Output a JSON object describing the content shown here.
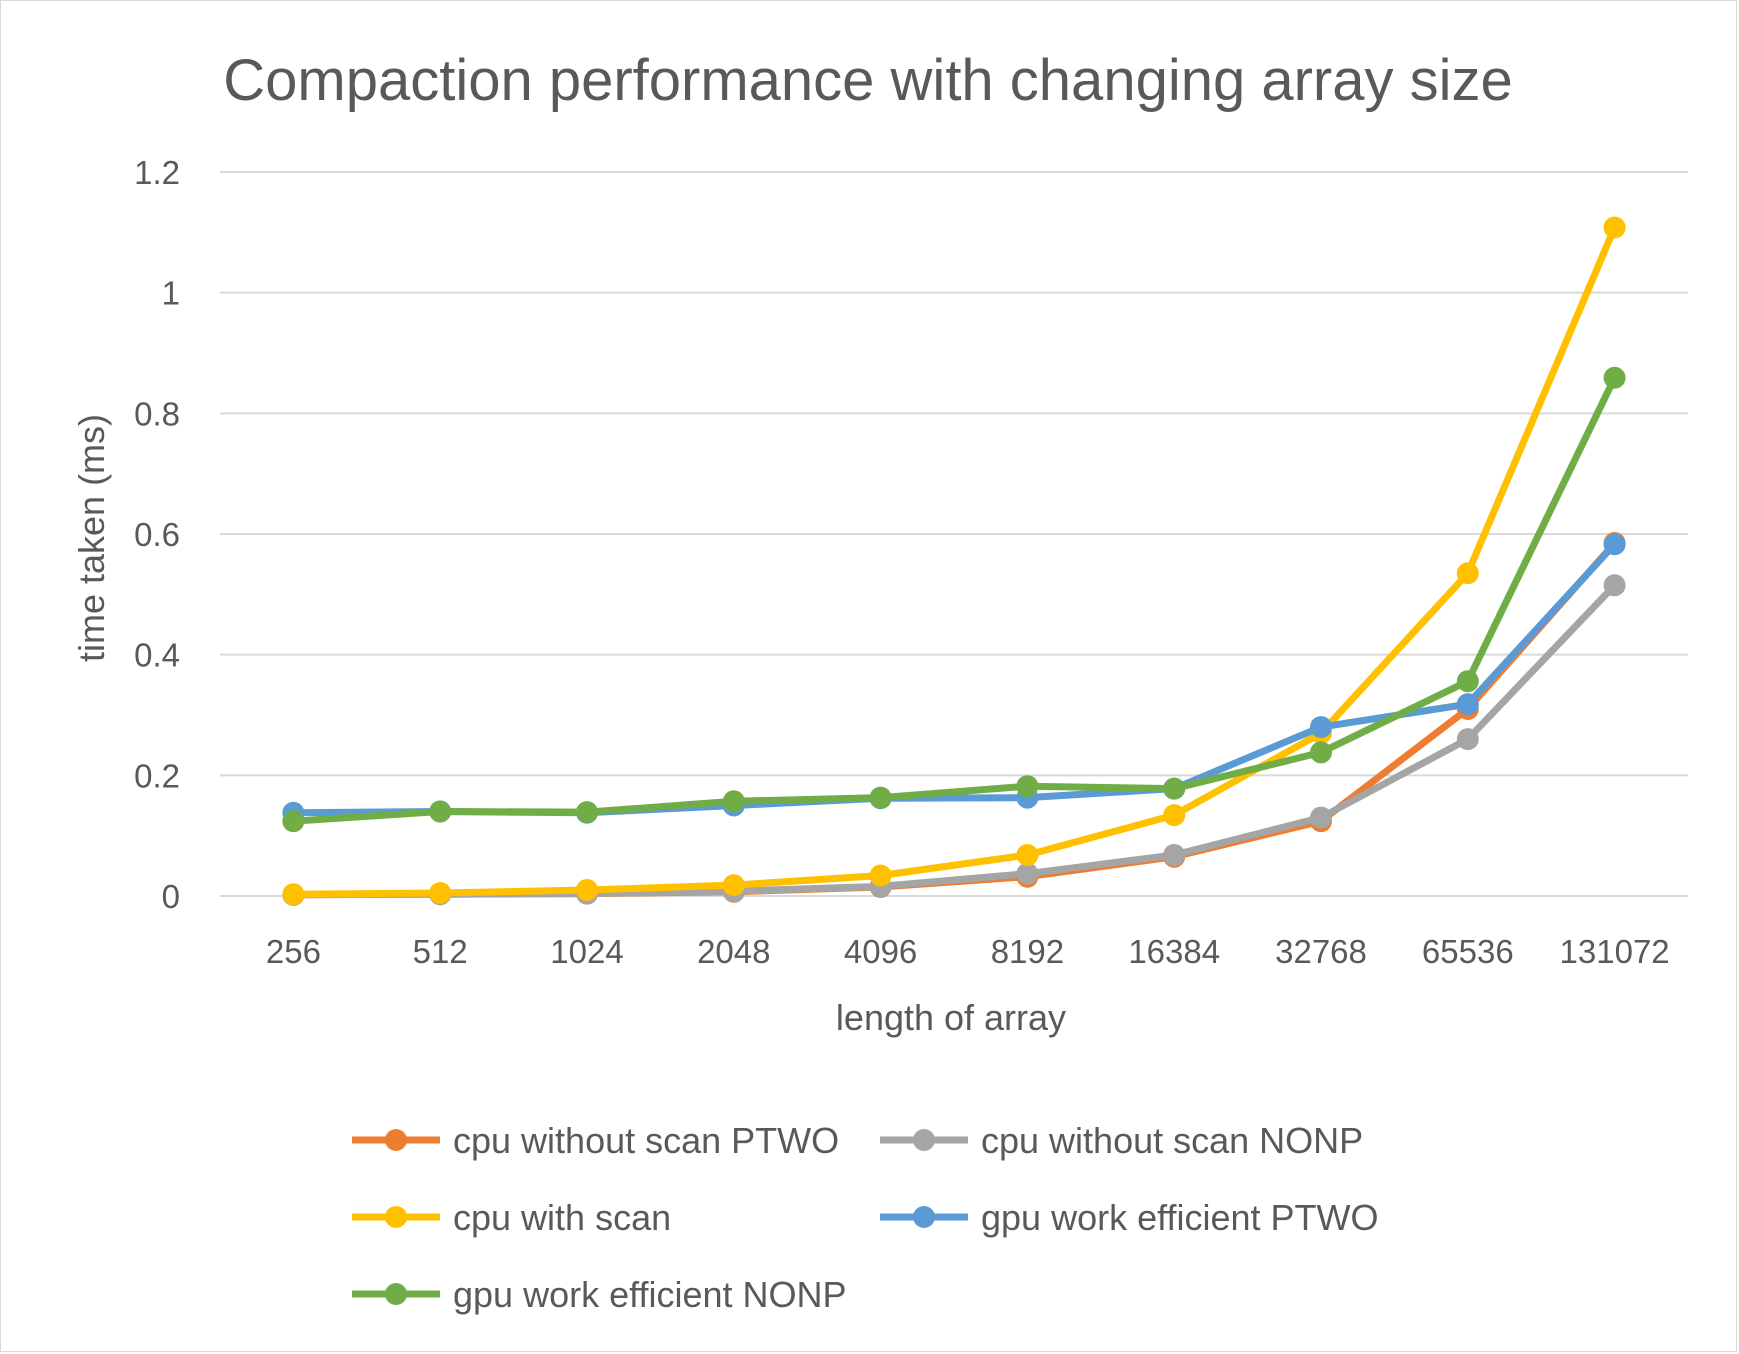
{
  "chart_data": {
    "type": "line",
    "title": "Compaction performance with changing array size",
    "xlabel": "length of array",
    "ylabel": "time taken (ms)",
    "categories": [
      "256",
      "512",
      "1024",
      "2048",
      "4096",
      "8192",
      "16384",
      "32768",
      "65536",
      "131072"
    ],
    "ylim": [
      0,
      1.2
    ],
    "yticks": [
      0,
      0.2,
      0.4,
      0.6,
      0.8,
      1,
      1.2
    ],
    "ytick_labels": [
      "0",
      "0.2",
      "0.4",
      "0.6",
      "0.8",
      "1",
      "1.2"
    ],
    "grid": true,
    "legend_position": "bottom",
    "series": [
      {
        "name": "cpu without scan PTWO",
        "color": "#ED7D31",
        "values": [
          0.002,
          0.003,
          0.004,
          0.007,
          0.015,
          0.032,
          0.065,
          0.124,
          0.31,
          0.585
        ]
      },
      {
        "name": "cpu without scan NONP",
        "color": "#A5A5A5",
        "values": [
          0.002,
          0.003,
          0.004,
          0.008,
          0.016,
          0.037,
          0.068,
          0.13,
          0.26,
          0.515
        ]
      },
      {
        "name": "cpu with scan",
        "color": "#FFC000",
        "values": [
          0.003,
          0.005,
          0.01,
          0.018,
          0.034,
          0.068,
          0.134,
          0.27,
          0.535,
          1.108
        ]
      },
      {
        "name": "gpu work efficient PTWO",
        "color": "#5B9BD5",
        "values": [
          0.138,
          0.14,
          0.138,
          0.15,
          0.162,
          0.163,
          0.178,
          0.28,
          0.318,
          0.583
        ]
      },
      {
        "name": "gpu work efficient NONP",
        "color": "#70AD47",
        "values": [
          0.124,
          0.14,
          0.139,
          0.157,
          0.163,
          0.182,
          0.178,
          0.238,
          0.356,
          0.859
        ]
      }
    ]
  }
}
